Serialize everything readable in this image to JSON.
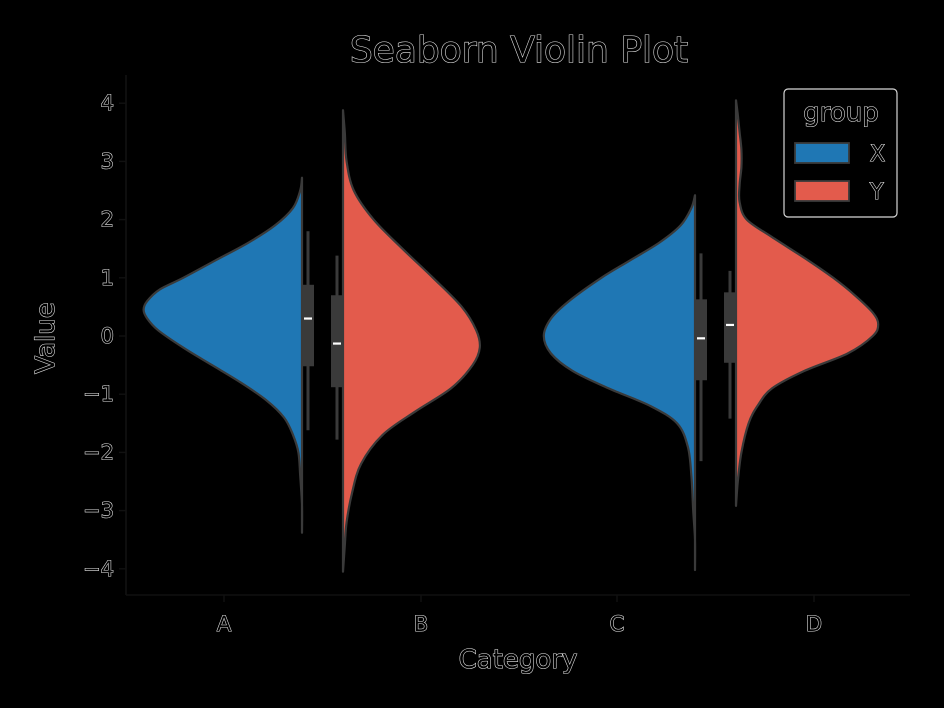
{
  "chart_data": {
    "type": "violin",
    "title": "Seaborn Violin Plot",
    "xlabel": "Category",
    "ylabel": "Value",
    "categories": [
      "A",
      "B",
      "C",
      "D"
    ],
    "ylim": [
      -4.45,
      4.45
    ],
    "yticks": [
      {
        "value": 4,
        "label": "4"
      },
      {
        "value": 3,
        "label": "3"
      },
      {
        "value": 2,
        "label": "2"
      },
      {
        "value": 1,
        "label": "1"
      },
      {
        "value": 0,
        "label": "0"
      },
      {
        "value": -1,
        "label": "−1"
      },
      {
        "value": -2,
        "label": "−2"
      },
      {
        "value": -3,
        "label": "−3"
      },
      {
        "value": -4,
        "label": "−4"
      }
    ],
    "legend": {
      "title": "group",
      "position": "upper-right",
      "entries": [
        {
          "label": "X",
          "color": "#1f77b4"
        },
        {
          "label": "Y",
          "color": "#e35b4c"
        }
      ]
    },
    "split": true,
    "violins": [
      {
        "category": "A",
        "group": "X",
        "side": "left",
        "color": "#1f77b4",
        "profile": [
          [
            2.72,
            0.0
          ],
          [
            2.5,
            0.01
          ],
          [
            2.2,
            0.05
          ],
          [
            1.9,
            0.15
          ],
          [
            1.6,
            0.3
          ],
          [
            1.3,
            0.48
          ],
          [
            1.0,
            0.66
          ],
          [
            0.8,
            0.79
          ],
          [
            0.6,
            0.86
          ],
          [
            0.45,
            0.88
          ],
          [
            0.3,
            0.86
          ],
          [
            0.1,
            0.8
          ],
          [
            -0.2,
            0.66
          ],
          [
            -0.5,
            0.5
          ],
          [
            -0.8,
            0.34
          ],
          [
            -1.1,
            0.2
          ],
          [
            -1.4,
            0.1
          ],
          [
            -1.7,
            0.05
          ],
          [
            -2.0,
            0.02
          ],
          [
            -2.4,
            0.01
          ],
          [
            -2.9,
            0.0
          ],
          [
            -3.38,
            0.0
          ]
        ],
        "box": {
          "q1": -0.52,
          "median": 0.3,
          "q3": 0.88,
          "whisker_low": -1.62,
          "whisker_high": 1.8
        }
      },
      {
        "category": "B",
        "group": "Y",
        "side": "right",
        "color": "#e35b4c",
        "profile": [
          [
            3.88,
            0.0
          ],
          [
            3.5,
            0.01
          ],
          [
            3.0,
            0.02
          ],
          [
            2.5,
            0.06
          ],
          [
            2.0,
            0.17
          ],
          [
            1.5,
            0.33
          ],
          [
            1.0,
            0.5
          ],
          [
            0.5,
            0.66
          ],
          [
            0.1,
            0.74
          ],
          [
            -0.2,
            0.76
          ],
          [
            -0.5,
            0.72
          ],
          [
            -0.9,
            0.6
          ],
          [
            -1.3,
            0.4
          ],
          [
            -1.7,
            0.22
          ],
          [
            -2.2,
            0.1
          ],
          [
            -2.7,
            0.05
          ],
          [
            -3.2,
            0.02
          ],
          [
            -3.6,
            0.01
          ],
          [
            -4.05,
            0.0
          ]
        ],
        "box": {
          "q1": -0.88,
          "median": -0.13,
          "q3": 0.7,
          "whisker_low": -1.78,
          "whisker_high": 1.38
        }
      },
      {
        "category": "C",
        "group": "X",
        "side": "left",
        "color": "#1f77b4",
        "profile": [
          [
            2.42,
            0.0
          ],
          [
            2.2,
            0.02
          ],
          [
            1.9,
            0.08
          ],
          [
            1.6,
            0.2
          ],
          [
            1.3,
            0.36
          ],
          [
            1.0,
            0.52
          ],
          [
            0.6,
            0.7
          ],
          [
            0.3,
            0.8
          ],
          [
            0.0,
            0.84
          ],
          [
            -0.3,
            0.8
          ],
          [
            -0.6,
            0.68
          ],
          [
            -0.9,
            0.48
          ],
          [
            -1.2,
            0.25
          ],
          [
            -1.5,
            0.1
          ],
          [
            -1.9,
            0.04
          ],
          [
            -2.4,
            0.02
          ],
          [
            -3.0,
            0.01
          ],
          [
            -3.5,
            0.0
          ],
          [
            -4.02,
            0.0
          ]
        ],
        "box": {
          "q1": -0.76,
          "median": -0.04,
          "q3": 0.63,
          "whisker_low": -2.15,
          "whisker_high": 1.42
        }
      },
      {
        "category": "D",
        "group": "Y",
        "side": "right",
        "color": "#e35b4c",
        "profile": [
          [
            4.05,
            0.0
          ],
          [
            3.8,
            0.01
          ],
          [
            3.5,
            0.02
          ],
          [
            3.2,
            0.03
          ],
          [
            2.9,
            0.03
          ],
          [
            2.6,
            0.02
          ],
          [
            2.3,
            0.02
          ],
          [
            2.0,
            0.06
          ],
          [
            1.7,
            0.2
          ],
          [
            1.3,
            0.4
          ],
          [
            1.0,
            0.54
          ],
          [
            0.7,
            0.66
          ],
          [
            0.4,
            0.76
          ],
          [
            0.2,
            0.79
          ],
          [
            0.0,
            0.76
          ],
          [
            -0.3,
            0.62
          ],
          [
            -0.6,
            0.38
          ],
          [
            -0.9,
            0.2
          ],
          [
            -1.2,
            0.12
          ],
          [
            -1.5,
            0.07
          ],
          [
            -2.0,
            0.03
          ],
          [
            -2.5,
            0.01
          ],
          [
            -2.92,
            0.0
          ]
        ],
        "box": {
          "q1": -0.46,
          "median": 0.19,
          "q3": 0.75,
          "whisker_low": -1.42,
          "whisker_high": 1.12
        }
      }
    ]
  }
}
